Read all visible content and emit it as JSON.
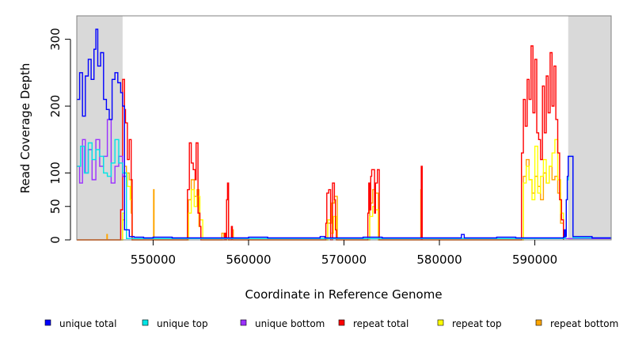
{
  "chart_data": {
    "type": "line",
    "title": "",
    "xlabel": "Coordinate in Reference Genome",
    "ylabel": "Read Coverage Depth",
    "xlim": [
      542000,
      598000
    ],
    "ylim": [
      0,
      335
    ],
    "x_ticks": [
      550000,
      560000,
      570000,
      580000,
      590000
    ],
    "x_tick_labels": [
      "550000",
      "560000",
      "570000",
      "580000",
      "590000"
    ],
    "y_ticks": [
      0,
      50,
      100,
      200,
      300
    ],
    "y_tick_labels": [
      "0",
      "50",
      "100",
      "200",
      "300"
    ],
    "grid": false,
    "legend_position": "bottom",
    "shaded_regions": [
      {
        "x": [
          542000,
          546800
        ],
        "color": "#d9d9d9"
      },
      {
        "x": [
          593500,
          598000
        ],
        "color": "#d9d9d9"
      }
    ],
    "series": [
      {
        "name": "unique total",
        "color": "#0000ff",
        "x": [
          542000,
          542300,
          542600,
          542900,
          543200,
          543500,
          543800,
          544000,
          544200,
          544500,
          544800,
          545100,
          545400,
          545700,
          546000,
          546300,
          546600,
          546800,
          547000,
          547500,
          548000,
          549000,
          550000,
          552000,
          555000,
          558000,
          560000,
          562000,
          565000,
          567500,
          568000,
          570000,
          572000,
          574000,
          576000,
          578000,
          580000,
          582000,
          582300,
          582600,
          584000,
          586000,
          588000,
          590000,
          592000,
          593000,
          593100,
          593200,
          593300,
          593400,
          593500,
          594000,
          596000,
          598000
        ],
        "y": [
          210,
          250,
          185,
          245,
          270,
          240,
          285,
          315,
          260,
          280,
          210,
          195,
          180,
          240,
          250,
          235,
          220,
          200,
          15,
          5,
          4,
          3,
          4,
          3,
          3,
          3,
          4,
          3,
          3,
          5,
          3,
          3,
          4,
          3,
          3,
          3,
          3,
          3,
          8,
          3,
          3,
          4,
          3,
          3,
          3,
          4,
          15,
          5,
          60,
          95,
          125,
          5,
          3,
          3
        ]
      },
      {
        "name": "unique top",
        "color": "#00e5e5",
        "x": [
          542000,
          542400,
          542800,
          543200,
          543600,
          544000,
          544400,
          544800,
          545200,
          545600,
          546000,
          546400,
          546800,
          547200,
          593000,
          593200,
          593300,
          593400,
          593500,
          594000,
          598000
        ],
        "y": [
          110,
          140,
          100,
          145,
          120,
          135,
          125,
          100,
          95,
          115,
          150,
          115,
          100,
          2,
          2,
          5,
          60,
          90,
          125,
          3,
          2
        ]
      },
      {
        "name": "unique bottom",
        "color": "#9b30ff",
        "x": [
          542000,
          542300,
          542600,
          542900,
          543200,
          543600,
          544000,
          544400,
          544800,
          545200,
          545600,
          546000,
          546400,
          546800,
          547200,
          598000
        ],
        "y": [
          110,
          85,
          150,
          100,
          135,
          90,
          150,
          110,
          125,
          180,
          85,
          110,
          125,
          95,
          2,
          2
        ]
      },
      {
        "name": "repeat total",
        "color": "#ff0000",
        "x": [
          542000,
          546400,
          546600,
          546800,
          547000,
          547100,
          547300,
          547500,
          547700,
          547800,
          553500,
          553600,
          553800,
          554000,
          554200,
          554400,
          554500,
          554700,
          554900,
          555000,
          557400,
          557500,
          557600,
          557700,
          557800,
          557900,
          558200,
          558300,
          558400,
          568000,
          568100,
          568200,
          568400,
          568600,
          568800,
          569000,
          569100,
          569200,
          569400,
          572400,
          572500,
          572600,
          572700,
          572800,
          572900,
          573200,
          573300,
          573500,
          573700,
          578000,
          578100,
          578200,
          588500,
          588600,
          588800,
          589000,
          589200,
          589400,
          589600,
          589800,
          590000,
          590200,
          590400,
          590600,
          590800,
          591000,
          591200,
          591400,
          591600,
          591800,
          592000,
          592200,
          592400,
          592600,
          592800,
          593000
        ],
        "y": [
          0,
          0,
          45,
          240,
          195,
          175,
          120,
          150,
          90,
          0,
          0,
          75,
          145,
          115,
          105,
          90,
          145,
          40,
          20,
          0,
          0,
          10,
          0,
          60,
          85,
          0,
          20,
          0,
          0,
          0,
          25,
          70,
          75,
          0,
          85,
          60,
          15,
          0,
          0,
          0,
          40,
          85,
          45,
          95,
          105,
          40,
          85,
          105,
          0,
          0,
          110,
          0,
          0,
          130,
          210,
          170,
          240,
          210,
          290,
          190,
          270,
          160,
          150,
          120,
          230,
          160,
          245,
          190,
          280,
          200,
          260,
          180,
          130,
          60,
          30,
          0
        ]
      },
      {
        "name": "repeat top",
        "color": "#ffff00",
        "x": [
          542000,
          546600,
          546800,
          547000,
          547300,
          547600,
          547800,
          553500,
          553700,
          554000,
          554300,
          554600,
          554900,
          555200,
          568000,
          568300,
          568600,
          568900,
          569200,
          572400,
          572700,
          573000,
          573300,
          573600,
          588500,
          588800,
          589100,
          589400,
          589700,
          590000,
          590300,
          590600,
          590900,
          591200,
          591500,
          591800,
          592100,
          592400,
          592700,
          593000
        ],
        "y": [
          0,
          0,
          40,
          100,
          80,
          60,
          0,
          0,
          40,
          75,
          50,
          65,
          30,
          0,
          0,
          30,
          10,
          35,
          0,
          0,
          35,
          50,
          45,
          0,
          0,
          85,
          110,
          90,
          60,
          140,
          70,
          95,
          120,
          85,
          110,
          130,
          150,
          90,
          40,
          0
        ]
      },
      {
        "name": "repeat bottom",
        "color": "#ffa500",
        "x": [
          542000,
          545100,
          545150,
          545200,
          546600,
          546800,
          547000,
          547200,
          547500,
          547700,
          547800,
          550000,
          550050,
          550100,
          553500,
          553700,
          554000,
          554300,
          554600,
          554800,
          555000,
          557000,
          557200,
          557400,
          557700,
          557900,
          558200,
          558400,
          568000,
          568300,
          568700,
          569000,
          569300,
          572400,
          572700,
          573000,
          573300,
          573600,
          578000,
          578050,
          578100,
          588500,
          588800,
          589100,
          589400,
          589700,
          590000,
          590300,
          590600,
          590900,
          591200,
          591500,
          591800,
          592100,
          592400,
          592700,
          593000
        ],
        "y": [
          0,
          0,
          8,
          0,
          0,
          30,
          110,
          100,
          90,
          40,
          0,
          0,
          75,
          0,
          0,
          60,
          90,
          65,
          75,
          20,
          0,
          0,
          10,
          5,
          60,
          0,
          15,
          0,
          0,
          25,
          55,
          65,
          0,
          0,
          55,
          75,
          70,
          0,
          0,
          75,
          0,
          0,
          95,
          120,
          90,
          70,
          95,
          80,
          60,
          100,
          85,
          110,
          90,
          95,
          70,
          25,
          0
        ]
      }
    ]
  }
}
